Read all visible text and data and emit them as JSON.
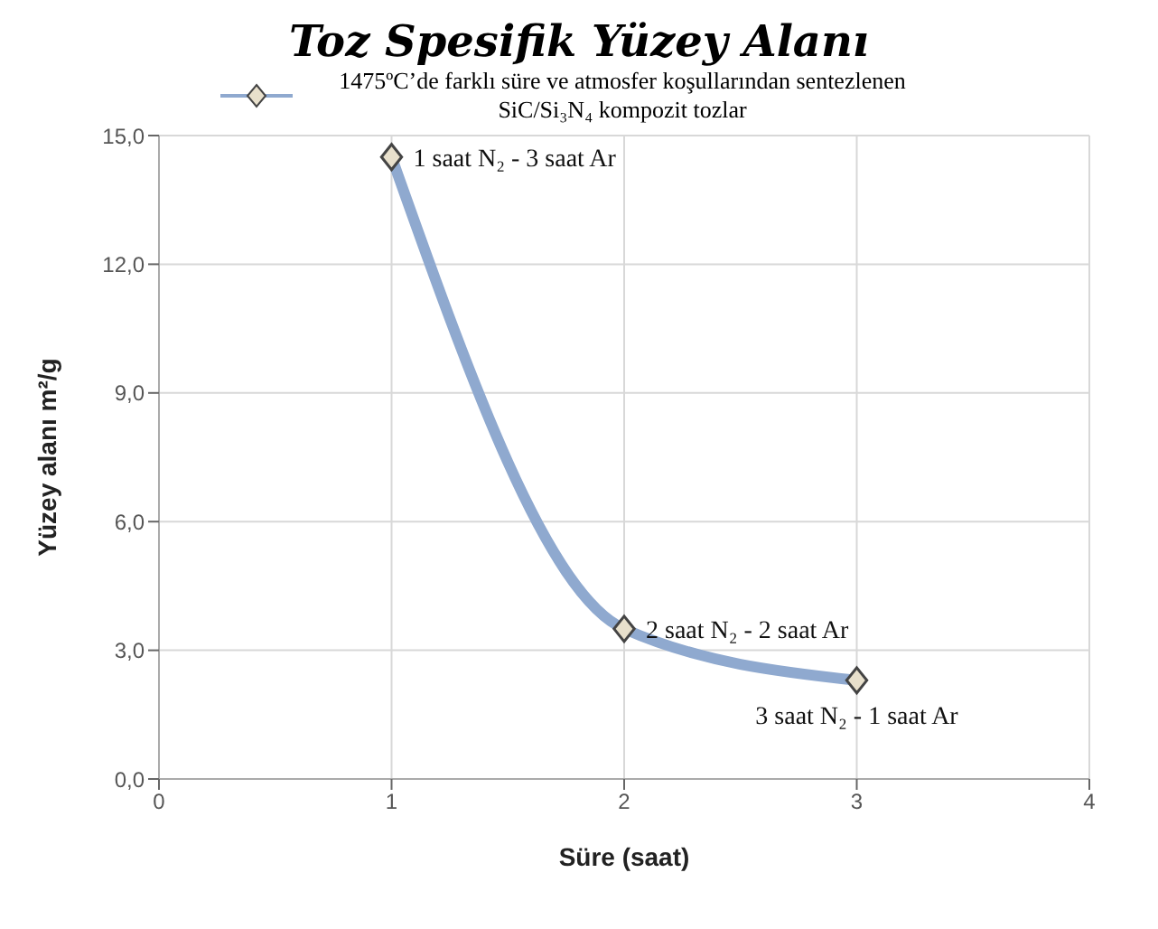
{
  "chart_data": {
    "type": "line",
    "title": "Toz Spesifik Yüzey Alanı",
    "xlabel": "Süre (saat)",
    "ylabel": "Yüzey alanı m²/g",
    "x": [
      1,
      2,
      3
    ],
    "series": [
      {
        "name": "1475ºC’de farklı süre ve atmosfer koşullarından sentezlenen SiC/Si₃N₄ kompozit tozlar",
        "color": "#8fa9cf",
        "values": [
          14.5,
          3.5,
          2.3
        ]
      }
    ],
    "xlim": [
      0,
      4
    ],
    "xticks": [
      0,
      1,
      2,
      3,
      4
    ],
    "ylim": [
      0,
      15
    ],
    "yticks": [
      {
        "value": 0,
        "label": "0,0"
      },
      {
        "value": 3,
        "label": "3,0"
      },
      {
        "value": 6,
        "label": "6,0"
      },
      {
        "value": 9,
        "label": "9,0"
      },
      {
        "value": 12,
        "label": "12,0"
      },
      {
        "value": 15,
        "label": "15,0"
      }
    ],
    "annotations": [
      {
        "text": "1 saat N₂ - 3 saat Ar",
        "x": 1,
        "y": 14.5
      },
      {
        "text": "2 saat N₂ - 2 saat Ar",
        "x": 2,
        "y": 3.5
      },
      {
        "text": "3 saat N₂ - 1 saat Ar",
        "x": 3,
        "y": 2.3
      }
    ],
    "grid": true,
    "legend": "top",
    "marker": "diamond",
    "line_style": "solid"
  }
}
